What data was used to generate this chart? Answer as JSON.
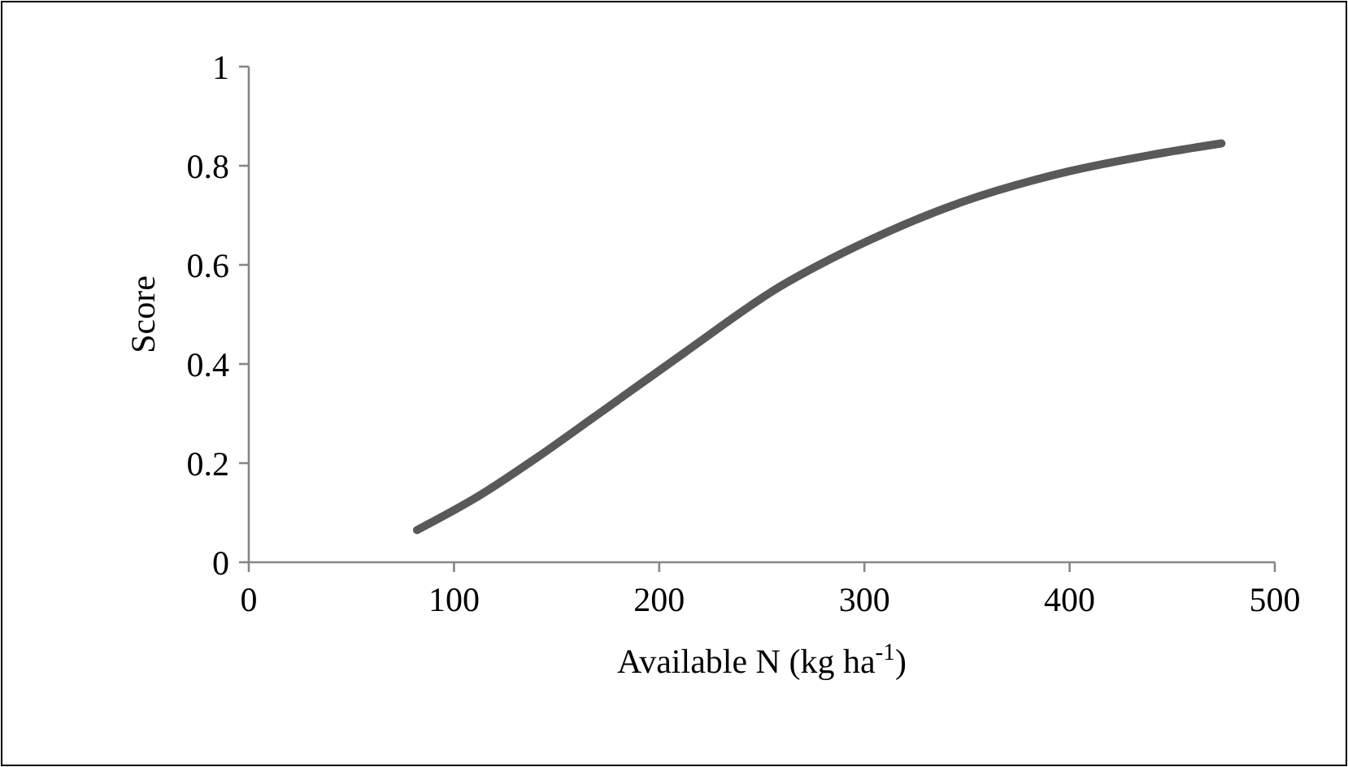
{
  "chart_data": {
    "type": "line",
    "xlabel": "Available N (kg ha$^{-1}$)",
    "ylabel": "Score",
    "xlim": [
      0,
      500
    ],
    "xticks": [
      0,
      100,
      200,
      300,
      400,
      500
    ],
    "ylim": [
      0,
      1
    ],
    "yticks": [
      0,
      0.2,
      0.4,
      0.6,
      0.8,
      1
    ],
    "grid": false,
    "marker": "none",
    "line_style": "solid",
    "series": [
      {
        "color": "#595959",
        "x": [
          82,
          113,
          140,
          170,
          212,
          258,
          301,
          347,
          400,
          440,
          474
        ],
        "values": [
          0.065,
          0.136,
          0.21,
          0.298,
          0.422,
          0.554,
          0.647,
          0.726,
          0.789,
          0.822,
          0.845
        ]
      }
    ]
  }
}
